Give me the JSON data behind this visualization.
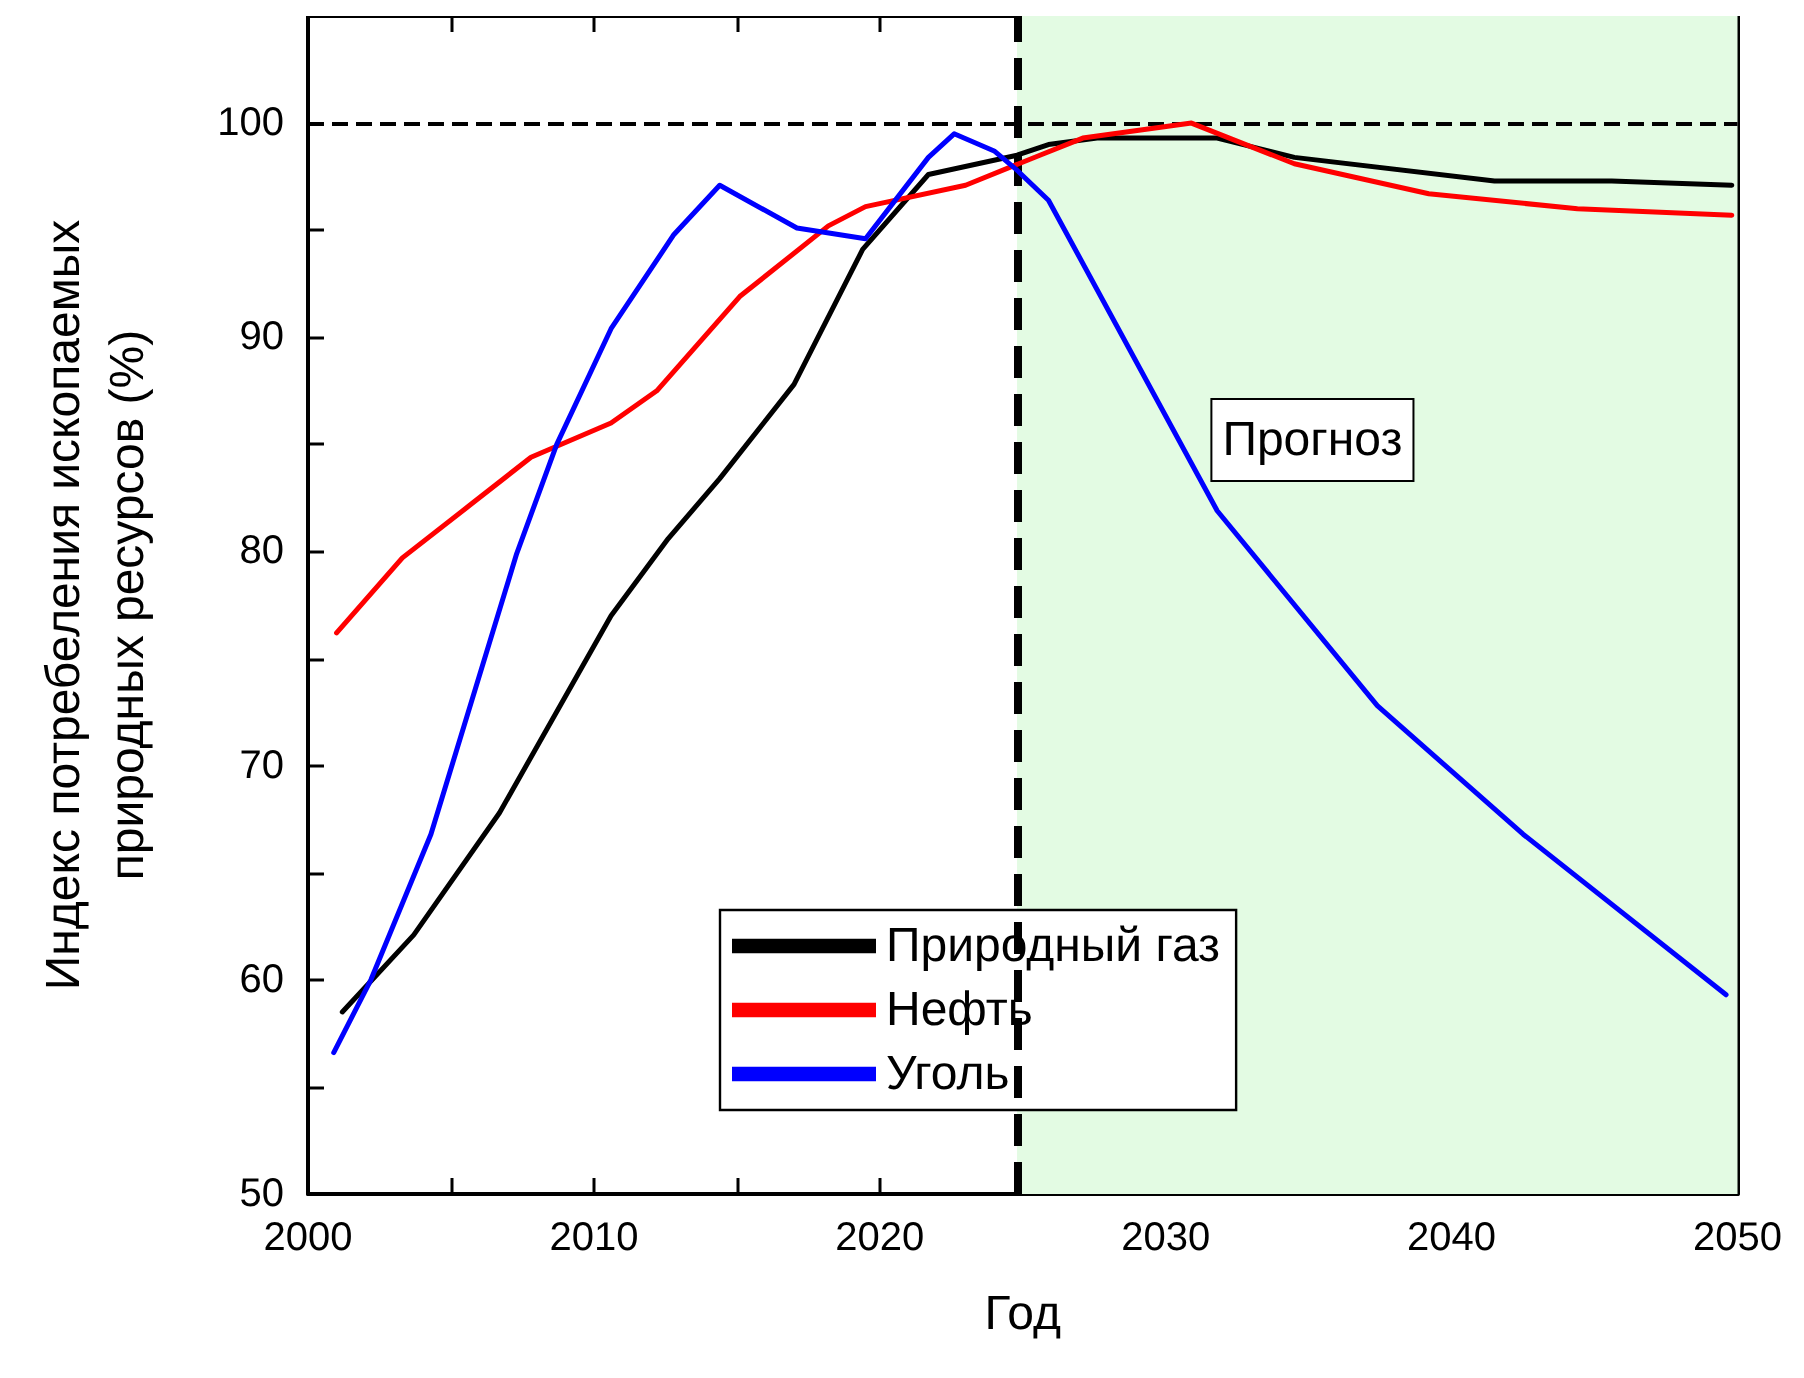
{
  "chart_data": {
    "type": "line",
    "xlabel": "Год",
    "ylabel": "Индекс потребеления ископаемых\nприродных ресурсов (%)",
    "xlim": [
      2000,
      2050
    ],
    "xticks": [
      2000,
      {
        "value": 2005,
        "label": null
      },
      2010,
      {
        "value": 2015,
        "label": null
      },
      2020,
      {
        "value": 2025,
        "label": null
      },
      2030,
      {
        "value": 2035,
        "label": null
      },
      2040,
      {
        "value": 2045,
        "label": null
      },
      2050
    ],
    "ylim": [
      50,
      105
    ],
    "yticks": [
      50,
      {
        "value": 55,
        "label": null
      },
      60,
      {
        "value": 65,
        "label": null
      },
      70,
      {
        "value": 75,
        "label": null
      },
      80,
      {
        "value": 85,
        "label": null
      },
      90,
      {
        "value": 95,
        "label": null
      },
      100
    ],
    "grid": false,
    "legend": "bottom",
    "line_style": "solid",
    "series": [
      {
        "name": "Природный газ",
        "color": "#000000",
        "x": [
          2001.2,
          2003.7,
          2006.7,
          2010.6,
          2012.6,
          2014.4,
          2017,
          2019.4,
          2021.7,
          2024.8,
          2025.9,
          2027.6,
          2031.8,
          2034.5,
          2041.5,
          2045.6,
          2049.8
        ],
        "values": [
          58.5,
          62.1,
          67.8,
          77.0,
          80.6,
          83.4,
          87.8,
          94.1,
          97.6,
          98.5,
          99.0,
          99.3,
          99.3,
          98.4,
          97.3,
          97.3,
          97.1
        ]
      },
      {
        "name": "Нефть",
        "color": "#ff0000",
        "x": [
          2001,
          2003.3,
          2005.7,
          2007.8,
          2010.6,
          2012.2,
          2015.1,
          2018.2,
          2019.5,
          2023,
          2025.6,
          2027.1,
          2030.9,
          2034.5,
          2039.2,
          2044.4,
          2049.8
        ],
        "values": [
          76.2,
          79.7,
          82.2,
          84.4,
          86.0,
          87.5,
          91.9,
          95.2,
          96.1,
          97.1,
          98.5,
          99.3,
          100.0,
          98.1,
          96.7,
          96.0,
          95.7
        ]
      },
      {
        "name": "Уголь",
        "color": "#0000ff",
        "x": [
          2000.9,
          2002.2,
          2004.3,
          2007.3,
          2008.7,
          2010.6,
          2012.8,
          2014.4,
          2017.1,
          2019.5,
          2021.7,
          2022.6,
          2024,
          2024.8,
          2025.9,
          2031.8,
          2037.4,
          2042.5,
          2049.6
        ],
        "values": [
          56.6,
          60.0,
          66.8,
          79.9,
          85.0,
          90.4,
          94.8,
          97.1,
          95.1,
          94.6,
          98.4,
          99.5,
          98.7,
          97.8,
          96.4,
          81.9,
          72.8,
          66.8,
          59.3
        ]
      }
    ],
    "ref_lines": [
      {
        "axis": "y",
        "value": 100,
        "color": "#000000",
        "line_style": "dashed"
      },
      {
        "axis": "x",
        "value": 2024.8,
        "color": "#000000",
        "line_style": "dashed"
      }
    ],
    "bands": [
      {
        "axis": "x",
        "from": 2024.8,
        "to": 2050,
        "label": "Прогноз",
        "color": "#e3fbe3"
      }
    ]
  }
}
